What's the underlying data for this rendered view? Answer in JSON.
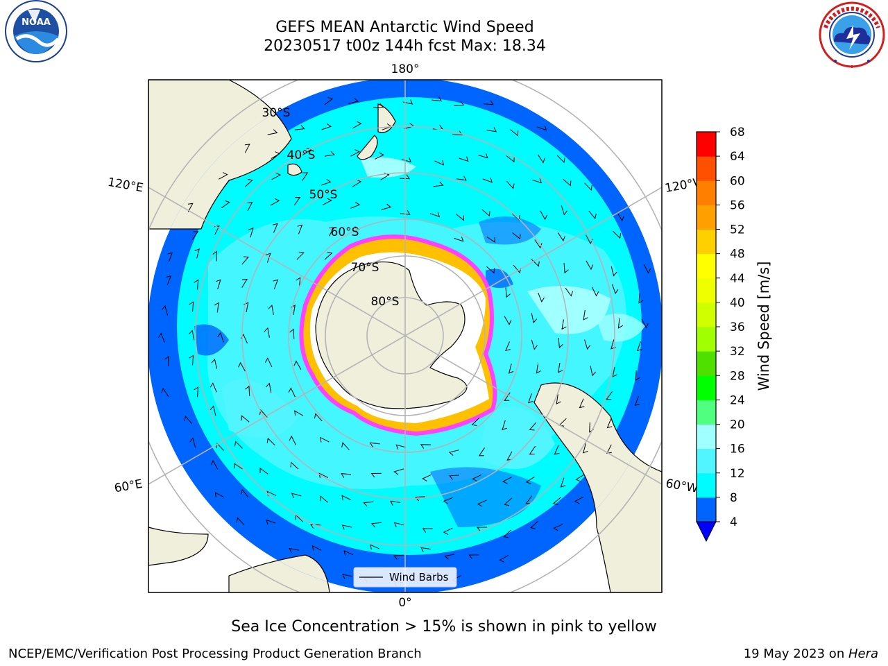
{
  "header": {
    "title_line1": "GEFS MEAN Antarctic Wind Speed",
    "title_line2": "20230517 t00z 144h fcst   Max: 18.34"
  },
  "logos": {
    "left": {
      "icon": "noaa-logo-icon",
      "text": "NOAA",
      "ring_text": "NATIONAL OCEANIC AND ATMOSPHERIC ADMINISTRATION · U.S. DEPARTMENT OF COMMERCE"
    },
    "right": {
      "icon": "national-weather-service-logo-icon",
      "ring_text": "NATIONAL WEATHER SERVICE"
    }
  },
  "map": {
    "projection": "south-polar-stereographic",
    "longitude_labels": {
      "top": "180°",
      "bottom": "0°",
      "upper_left": "120°E",
      "upper_right": "120°W",
      "lower_left": "60°E",
      "lower_right": "60°W"
    },
    "latitude_labels": [
      "30°S",
      "40°S",
      "50°S",
      "60°S",
      "70°S",
      "80°S"
    ],
    "legend": {
      "label": "Wind Barbs"
    },
    "colors": {
      "land": "#efefdc",
      "background": "#ffffff",
      "grid": "#b4b4b4",
      "sea_ice_edge": "#ff40ff",
      "sea_ice_core": "#ffc000"
    }
  },
  "colorbar": {
    "label": "Wind Speed [m/s]",
    "ticks": [
      "4",
      "8",
      "12",
      "16",
      "20",
      "24",
      "28",
      "32",
      "36",
      "40",
      "44",
      "48",
      "52",
      "56",
      "60",
      "64",
      "68"
    ],
    "colors": [
      "#0064ff",
      "#00fcff",
      "#50f5ff",
      "#a0ffff",
      "#50ff80",
      "#00ff00",
      "#50e000",
      "#a0ff00",
      "#d0ff00",
      "#f0ff00",
      "#ffff00",
      "#ffd000",
      "#ffa000",
      "#ff8000",
      "#ff5000",
      "#ff0000"
    ],
    "extend_color": "#0000ff"
  },
  "footer": {
    "ice_note": "Sea Ice Concentration > 15% is shown in pink to yellow",
    "branch": "NCEP/EMC/Verification Post Processing Product Generation Branch",
    "date_text": "19 May 2023 on ",
    "host": "Hera"
  }
}
